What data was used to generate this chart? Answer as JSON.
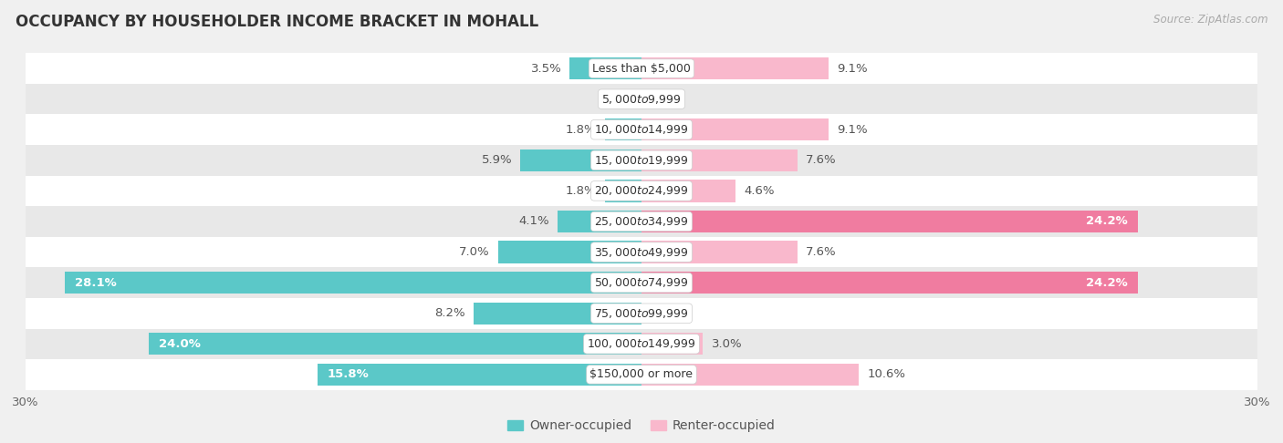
{
  "title": "OCCUPANCY BY HOUSEHOLDER INCOME BRACKET IN MOHALL",
  "source": "Source: ZipAtlas.com",
  "categories": [
    "Less than $5,000",
    "$5,000 to $9,999",
    "$10,000 to $14,999",
    "$15,000 to $19,999",
    "$20,000 to $24,999",
    "$25,000 to $34,999",
    "$35,000 to $49,999",
    "$50,000 to $74,999",
    "$75,000 to $99,999",
    "$100,000 to $149,999",
    "$150,000 or more"
  ],
  "owner_values": [
    3.5,
    0.0,
    1.8,
    5.9,
    1.8,
    4.1,
    7.0,
    28.1,
    8.2,
    24.0,
    15.8
  ],
  "renter_values": [
    9.1,
    0.0,
    9.1,
    7.6,
    4.6,
    24.2,
    7.6,
    24.2,
    0.0,
    3.0,
    10.6
  ],
  "owner_color": "#5bc8c8",
  "renter_color": "#f07ca0",
  "renter_color_light": "#f9b8cc",
  "background_color": "#f0f0f0",
  "row_bg_odd": "#ffffff",
  "row_bg_even": "#e8e8e8",
  "bar_height": 0.72,
  "axis_limit": 30.0,
  "label_fontsize": 9.5,
  "title_fontsize": 12,
  "source_fontsize": 8.5,
  "legend_fontsize": 10,
  "category_fontsize": 9.0,
  "large_threshold": 12.0
}
